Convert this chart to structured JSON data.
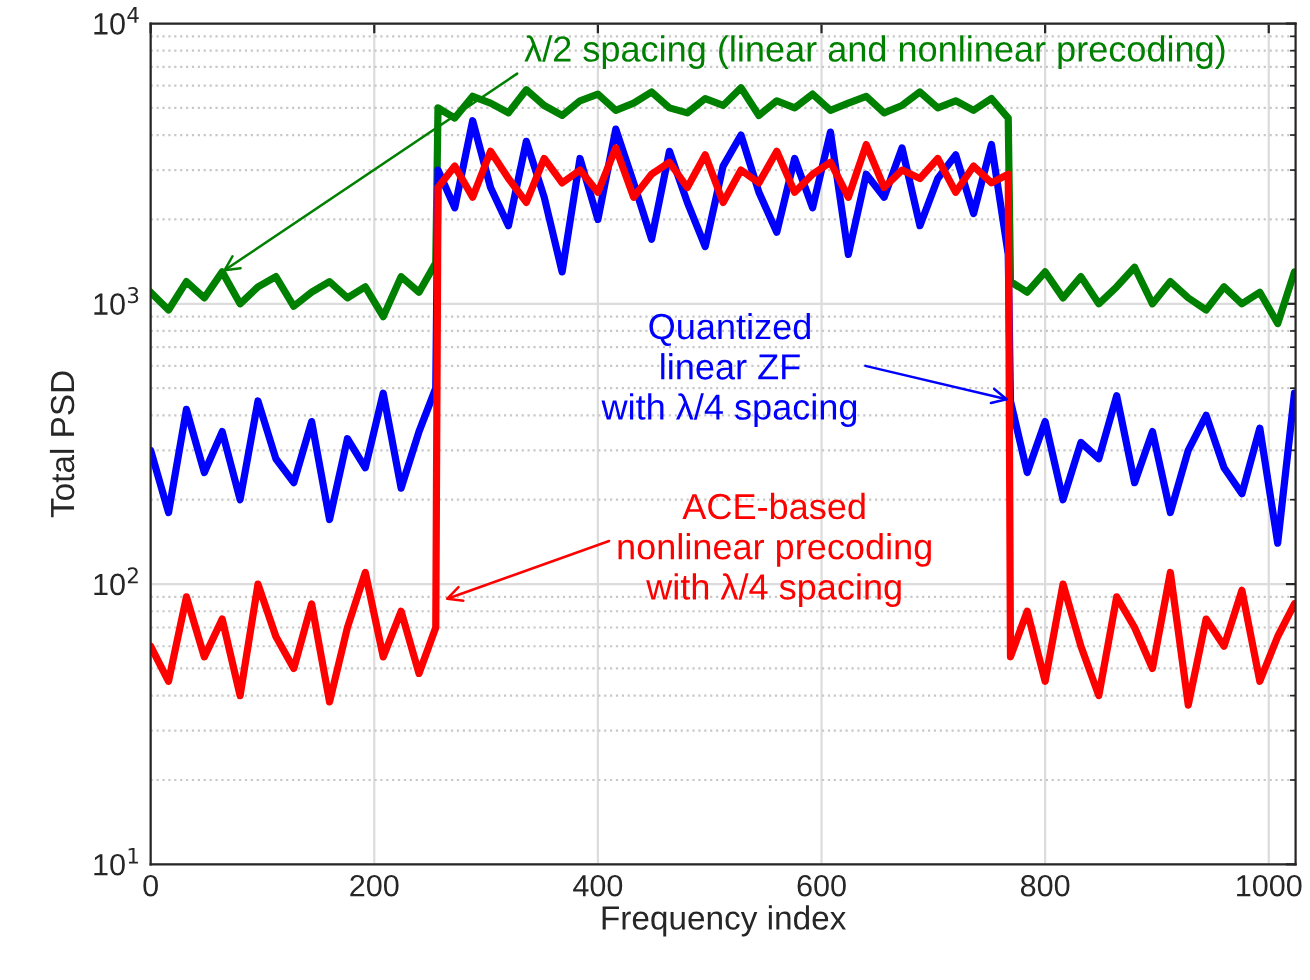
{
  "chart_data": {
    "type": "line",
    "xlabel": "Frequency index",
    "ylabel": "Total PSD",
    "x": [
      0,
      16,
      32,
      48,
      64,
      80,
      96,
      112,
      128,
      144,
      160,
      176,
      192,
      208,
      224,
      240,
      255,
      257,
      272,
      288,
      304,
      320,
      336,
      352,
      368,
      384,
      400,
      416,
      432,
      448,
      464,
      480,
      496,
      512,
      528,
      544,
      560,
      576,
      592,
      608,
      624,
      640,
      656,
      672,
      688,
      704,
      720,
      736,
      752,
      767,
      769,
      784,
      800,
      816,
      832,
      848,
      864,
      880,
      896,
      912,
      928,
      944,
      960,
      976,
      992,
      1008,
      1023
    ],
    "series": [
      {
        "color": "#008000",
        "values": [
          1100,
          950,
          1200,
          1050,
          1300,
          1000,
          1150,
          1250,
          980,
          1100,
          1200,
          1050,
          1150,
          900,
          1250,
          1100,
          1400,
          5000,
          4600,
          5500,
          5200,
          4800,
          5800,
          5100,
          4700,
          5300,
          5600,
          4900,
          5200,
          5700,
          5000,
          4800,
          5400,
          5100,
          5900,
          4700,
          5300,
          5000,
          5600,
          4900,
          5200,
          5500,
          4800,
          5100,
          5700,
          5000,
          5300,
          4900,
          5400,
          4600,
          1200,
          1100,
          1300,
          1050,
          1250,
          1000,
          1150,
          1350,
          1000,
          1200,
          1050,
          950,
          1150,
          1000,
          1100,
          850,
          1300
        ]
      },
      {
        "color": "#0000ff",
        "values": [
          300,
          180,
          420,
          250,
          350,
          200,
          450,
          280,
          230,
          380,
          170,
          330,
          260,
          480,
          220,
          350,
          500,
          3000,
          2200,
          4500,
          2600,
          1900,
          3800,
          2400,
          1300,
          3300,
          2000,
          4200,
          2700,
          1700,
          3500,
          2300,
          1600,
          3100,
          4000,
          2500,
          1800,
          3300,
          2200,
          4100,
          1500,
          2900,
          2400,
          3600,
          1900,
          2800,
          3400,
          2100,
          3700,
          1500,
          450,
          250,
          380,
          200,
          320,
          280,
          470,
          230,
          350,
          180,
          300,
          400,
          260,
          210,
          360,
          140,
          480
        ]
      },
      {
        "color": "#ff0000",
        "values": [
          60,
          45,
          90,
          55,
          75,
          40,
          100,
          65,
          50,
          85,
          38,
          70,
          110,
          55,
          80,
          48,
          70,
          2600,
          3100,
          2400,
          3500,
          2800,
          2300,
          3300,
          2700,
          3000,
          2500,
          3600,
          2400,
          2900,
          3200,
          2600,
          3400,
          2300,
          3000,
          2700,
          3500,
          2500,
          2900,
          3200,
          2400,
          3700,
          2600,
          3000,
          2800,
          3300,
          2500,
          3100,
          2700,
          2900,
          55,
          80,
          45,
          100,
          60,
          40,
          90,
          70,
          50,
          110,
          37,
          75,
          60,
          95,
          45,
          65,
          85
        ]
      }
    ],
    "log": "y",
    "xlim": [
      0,
      1024
    ],
    "ylim": [
      10,
      10000
    ],
    "xticks": [
      0,
      200,
      400,
      600,
      800,
      1000
    ],
    "yticks": [
      {
        "value": 10,
        "label": "10$^{1}$"
      },
      {
        "value": 100,
        "label": "10$^{2}$"
      },
      {
        "value": 1000,
        "label": "10$^{3}$"
      },
      {
        "value": 10000,
        "label": "10$^{4}$"
      }
    ],
    "grid": true,
    "line_style": "solid",
    "marker": "none",
    "annotations": [
      {
        "text": "λ/2 spacing (linear and nonlinear precoding)",
        "x": 64,
        "y": 1300
      },
      {
        "text": "Quantized\nlinear ZF\nwith λ/4 spacing",
        "x": 768,
        "y": 454
      },
      {
        "text": "ACE-based\nnonlinear precoding\nwith λ/4 spacing",
        "x": 263,
        "y": 88
      }
    ]
  }
}
